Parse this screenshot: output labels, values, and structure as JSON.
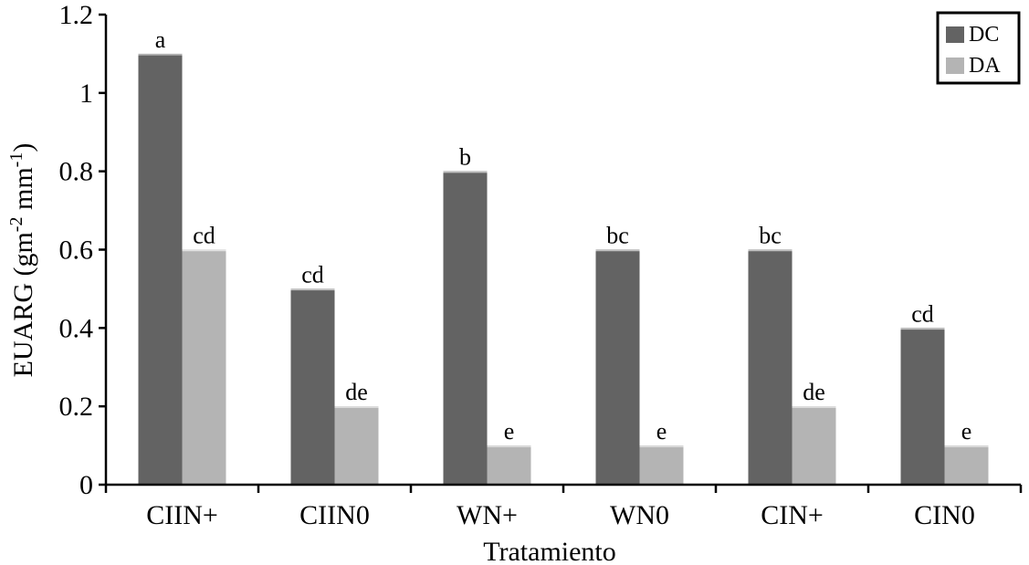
{
  "chart_data": {
    "type": "bar",
    "xlabel": "Tratamiento",
    "ylabel": {
      "prefix": "EUARG (gm",
      "sup1": "-2",
      "middle": " mm",
      "sup2": "-1",
      "suffix": ")"
    },
    "ylim": [
      0,
      1.2
    ],
    "yticks": [
      {
        "value": 0,
        "label": "0"
      },
      {
        "value": 0.2,
        "label": "0.2"
      },
      {
        "value": 0.4,
        "label": "0.4"
      },
      {
        "value": 0.6,
        "label": "0.6"
      },
      {
        "value": 0.8,
        "label": "0.8"
      },
      {
        "value": 1.0,
        "label": "1"
      },
      {
        "value": 1.2,
        "label": "1.2"
      }
    ],
    "categories": [
      "CIIN+",
      "CIIN0",
      "WN+",
      "WN0",
      "CIN+",
      "CIN0"
    ],
    "series": [
      {
        "name": "DC",
        "color": "#636363",
        "values": [
          1.1,
          0.5,
          0.8,
          0.6,
          0.6,
          0.4
        ],
        "labels": [
          "a",
          "cd",
          "b",
          "bc",
          "bc",
          "cd"
        ]
      },
      {
        "name": "DA",
        "color": "#b4b4b4",
        "values": [
          0.6,
          0.2,
          0.1,
          0.1,
          0.2,
          0.1
        ],
        "labels": [
          "cd",
          "de",
          "e",
          "e",
          "de",
          "e"
        ]
      }
    ],
    "grid": false,
    "legend_position": "top-right"
  }
}
